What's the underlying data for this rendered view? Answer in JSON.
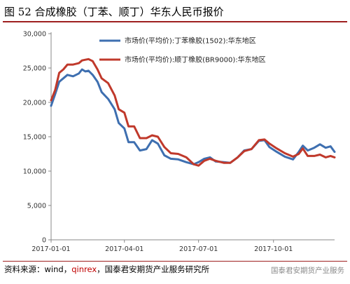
{
  "figure": {
    "title": "图 52 合成橡胶（丁苯、顺丁）华东人民币报价",
    "source_prefix": "资料来源：wind，",
    "source_highlight": "qinrex",
    "source_suffix": "，国泰君安期货产业服务研究所",
    "watermark": "国泰君安期货产业服务"
  },
  "chart_data": {
    "type": "line",
    "title": "",
    "xlabel": "",
    "ylabel": "",
    "ylim": [
      0,
      30000
    ],
    "yticks": [
      "0",
      "5,000",
      "10,000",
      "15,000",
      "20,000",
      "25,000",
      "30,000"
    ],
    "ytick_values": [
      0,
      5000,
      10000,
      15000,
      20000,
      25000,
      30000
    ],
    "xticks": [
      "2017-01-01",
      "2017-04-01",
      "2017-07-01",
      "2017-10-01"
    ],
    "xtick_dates": [
      "2017-01-01",
      "2017-04-01",
      "2017-07-01",
      "2017-10-01"
    ],
    "xlim": [
      "2017-01-01",
      "2017-12-15"
    ],
    "legend_position": "top-right",
    "grid": false,
    "series": [
      {
        "name": "市场价(平均价):丁苯橡胶(1502):华东地区",
        "color": "#3e6fb0",
        "points": [
          [
            "2017-01-01",
            19500
          ],
          [
            "2017-01-06",
            21200
          ],
          [
            "2017-01-11",
            23000
          ],
          [
            "2017-01-16",
            23500
          ],
          [
            "2017-01-21",
            24000
          ],
          [
            "2017-01-28",
            23800
          ],
          [
            "2017-02-04",
            24200
          ],
          [
            "2017-02-08",
            24800
          ],
          [
            "2017-02-12",
            24500
          ],
          [
            "2017-02-16",
            24600
          ],
          [
            "2017-02-21",
            24000
          ],
          [
            "2017-02-27",
            23000
          ],
          [
            "2017-03-04",
            21500
          ],
          [
            "2017-03-12",
            20500
          ],
          [
            "2017-03-20",
            19000
          ],
          [
            "2017-03-25",
            17000
          ],
          [
            "2017-04-01",
            16200
          ],
          [
            "2017-04-06",
            14200
          ],
          [
            "2017-04-13",
            14200
          ],
          [
            "2017-04-20",
            13000
          ],
          [
            "2017-04-28",
            13200
          ],
          [
            "2017-05-05",
            14500
          ],
          [
            "2017-05-12",
            14000
          ],
          [
            "2017-05-20",
            12300
          ],
          [
            "2017-05-28",
            11800
          ],
          [
            "2017-06-06",
            11700
          ],
          [
            "2017-06-16",
            11300
          ],
          [
            "2017-06-25",
            11000
          ],
          [
            "2017-07-01",
            11300
          ],
          [
            "2017-07-08",
            11800
          ],
          [
            "2017-07-15",
            12000
          ],
          [
            "2017-07-22",
            11400
          ],
          [
            "2017-08-01",
            11300
          ],
          [
            "2017-08-09",
            11200
          ],
          [
            "2017-08-18",
            12000
          ],
          [
            "2017-08-26",
            13000
          ],
          [
            "2017-09-04",
            13200
          ],
          [
            "2017-09-13",
            14400
          ],
          [
            "2017-09-20",
            14500
          ],
          [
            "2017-09-26",
            13500
          ],
          [
            "2017-10-05",
            12800
          ],
          [
            "2017-10-15",
            12100
          ],
          [
            "2017-10-25",
            11700
          ],
          [
            "2017-11-01",
            12800
          ],
          [
            "2017-11-06",
            13700
          ],
          [
            "2017-11-12",
            13000
          ],
          [
            "2017-11-20",
            13400
          ],
          [
            "2017-11-27",
            13900
          ],
          [
            "2017-12-04",
            13400
          ],
          [
            "2017-12-10",
            13600
          ],
          [
            "2017-12-15",
            12800
          ]
        ]
      },
      {
        "name": "市场价(平均价):顺丁橡胶(BR9000):华东地区",
        "color": "#c0392b",
        "points": [
          [
            "2017-01-01",
            20300
          ],
          [
            "2017-01-06",
            21800
          ],
          [
            "2017-01-11",
            24300
          ],
          [
            "2017-01-16",
            24800
          ],
          [
            "2017-01-21",
            25500
          ],
          [
            "2017-01-28",
            25500
          ],
          [
            "2017-02-04",
            25700
          ],
          [
            "2017-02-08",
            26100
          ],
          [
            "2017-02-12",
            26200
          ],
          [
            "2017-02-16",
            26300
          ],
          [
            "2017-02-21",
            26000
          ],
          [
            "2017-02-27",
            24800
          ],
          [
            "2017-03-04",
            23500
          ],
          [
            "2017-03-12",
            22800
          ],
          [
            "2017-03-20",
            21000
          ],
          [
            "2017-03-25",
            19000
          ],
          [
            "2017-04-01",
            18500
          ],
          [
            "2017-04-06",
            16500
          ],
          [
            "2017-04-13",
            16500
          ],
          [
            "2017-04-20",
            14800
          ],
          [
            "2017-04-28",
            14800
          ],
          [
            "2017-05-05",
            15200
          ],
          [
            "2017-05-12",
            15000
          ],
          [
            "2017-05-20",
            13500
          ],
          [
            "2017-05-28",
            12600
          ],
          [
            "2017-06-06",
            12500
          ],
          [
            "2017-06-16",
            12000
          ],
          [
            "2017-06-25",
            11000
          ],
          [
            "2017-07-01",
            10800
          ],
          [
            "2017-07-08",
            11500
          ],
          [
            "2017-07-15",
            11800
          ],
          [
            "2017-07-22",
            11500
          ],
          [
            "2017-08-01",
            11200
          ],
          [
            "2017-08-09",
            11200
          ],
          [
            "2017-08-18",
            12000
          ],
          [
            "2017-08-26",
            12900
          ],
          [
            "2017-09-04",
            13200
          ],
          [
            "2017-09-13",
            14500
          ],
          [
            "2017-09-20",
            14600
          ],
          [
            "2017-09-26",
            14000
          ],
          [
            "2017-10-05",
            13300
          ],
          [
            "2017-10-15",
            12600
          ],
          [
            "2017-10-25",
            12100
          ],
          [
            "2017-11-01",
            12500
          ],
          [
            "2017-11-06",
            13300
          ],
          [
            "2017-11-12",
            12200
          ],
          [
            "2017-11-20",
            12200
          ],
          [
            "2017-11-27",
            12400
          ],
          [
            "2017-12-04",
            12000
          ],
          [
            "2017-12-10",
            12200
          ],
          [
            "2017-12-15",
            12000
          ]
        ]
      }
    ]
  }
}
